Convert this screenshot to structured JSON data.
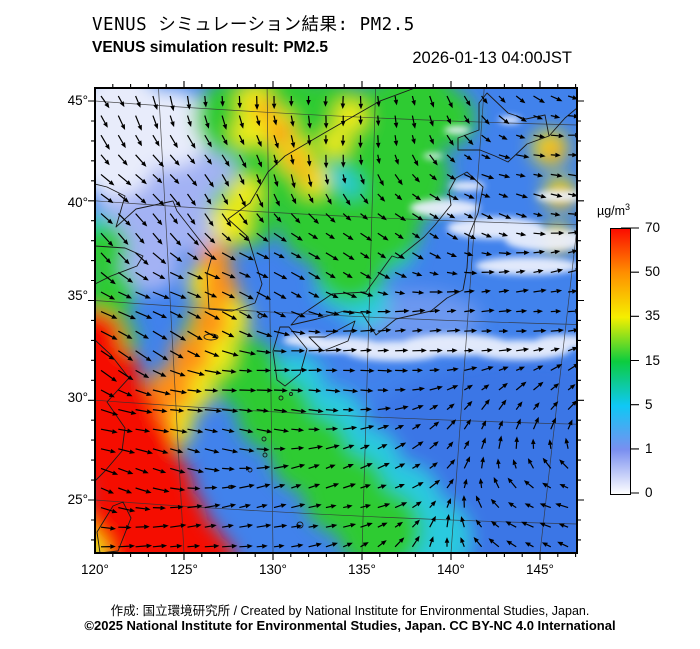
{
  "header": {
    "title_jp": "VENUS シミュレーション結果: PM2.5",
    "title_en": "VENUS simulation result: PM2.5",
    "timestamp": "2026-01-13 04:00JST"
  },
  "axes": {
    "lat_ticks": [
      "45°",
      "40°",
      "35°",
      "30°",
      "25°"
    ],
    "lon_ticks": [
      "120°",
      "125°",
      "130°",
      "135°",
      "140°",
      "145°"
    ]
  },
  "legend": {
    "unit_base": "µg/m",
    "unit_sup": "3",
    "ticks": [
      "70",
      "50",
      "35",
      "15",
      "5",
      "1",
      "0"
    ],
    "scale_values": [
      70,
      50,
      35,
      15,
      5,
      1,
      0
    ],
    "scale_colors": [
      "#fb0d00",
      "#ff9000",
      "#f5ef00",
      "#0ccc3f",
      "#0fc8f5",
      "#7a8ff0",
      "#ffffff"
    ]
  },
  "footer": {
    "credit": "作成: 国立環境研究所 / Created by National Institute for Environmental Studies, Japan.",
    "copyright": "©2025 National Institute for Environmental Studies, Japan. CC BY-NC 4.0 International"
  }
}
